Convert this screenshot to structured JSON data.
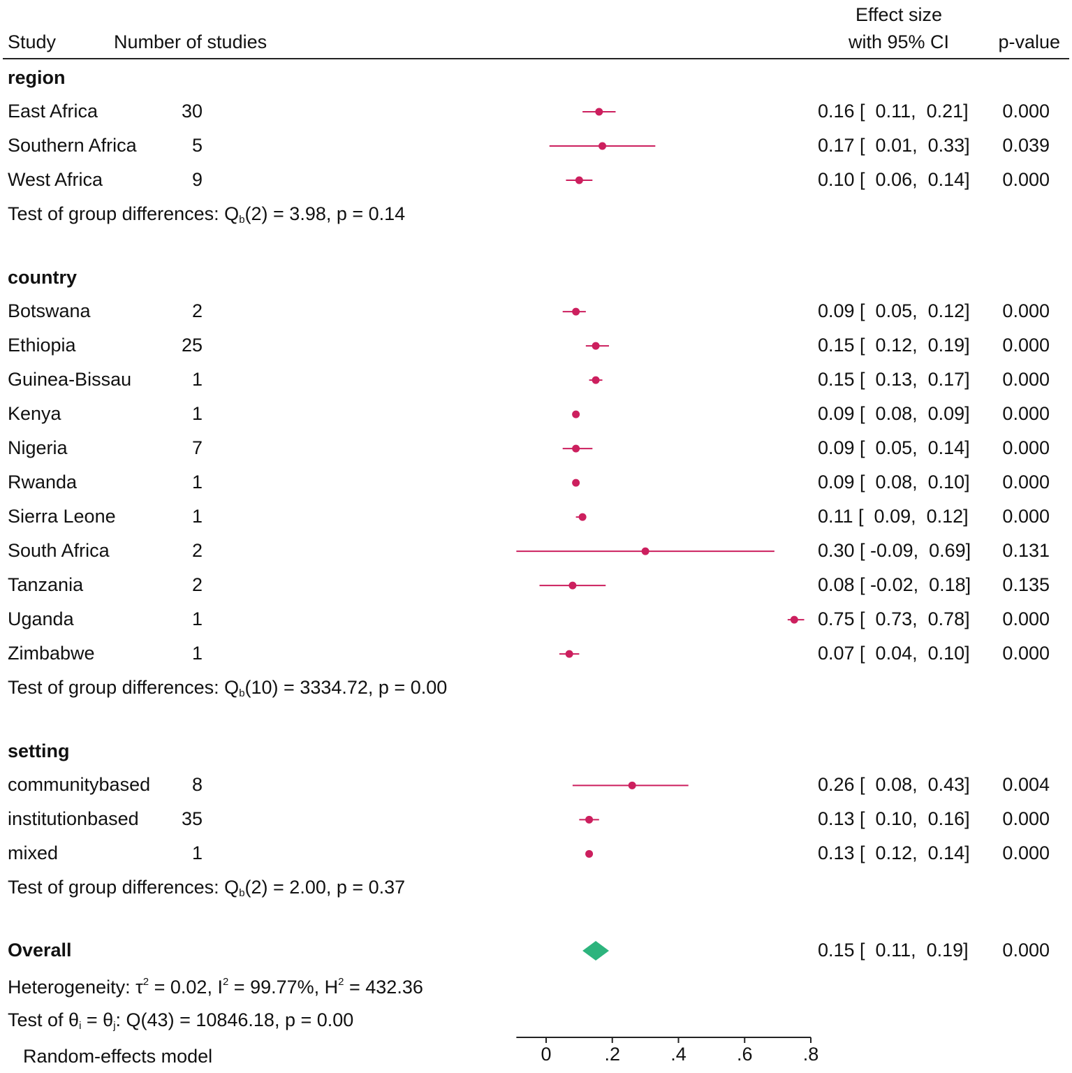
{
  "chart_data": {
    "type": "forest",
    "columns": {
      "study": "Study",
      "n_studies": "Number of studies",
      "effect_line1": "Effect size",
      "effect_line2": "with 95% CI",
      "pvalue": "p-value"
    },
    "groups": [
      {
        "name": "region",
        "rows": [
          {
            "label": "East Africa",
            "n": "30",
            "es": 0.16,
            "lo": 0.11,
            "hi": 0.21,
            "ci_text": "0.16 [  0.11,  0.21]",
            "p": "0.000"
          },
          {
            "label": "Southern Africa",
            "n": "5",
            "es": 0.17,
            "lo": 0.01,
            "hi": 0.33,
            "ci_text": "0.17 [  0.01,  0.33]",
            "p": "0.039"
          },
          {
            "label": "West Africa",
            "n": "9",
            "es": 0.1,
            "lo": 0.06,
            "hi": 0.14,
            "ci_text": "0.10 [  0.06,  0.14]",
            "p": "0.000"
          }
        ],
        "test_prefix": "Test of group differences: Q",
        "test_sub": "b",
        "test_suffix": "(2) = 3.98, p = 0.14"
      },
      {
        "name": "country",
        "rows": [
          {
            "label": "Botswana",
            "n": "2",
            "es": 0.09,
            "lo": 0.05,
            "hi": 0.12,
            "ci_text": "0.09 [  0.05,  0.12]",
            "p": "0.000"
          },
          {
            "label": "Ethiopia",
            "n": "25",
            "es": 0.15,
            "lo": 0.12,
            "hi": 0.19,
            "ci_text": "0.15 [  0.12,  0.19]",
            "p": "0.000"
          },
          {
            "label": "Guinea-Bissau",
            "n": "1",
            "es": 0.15,
            "lo": 0.13,
            "hi": 0.17,
            "ci_text": "0.15 [  0.13,  0.17]",
            "p": "0.000"
          },
          {
            "label": "Kenya",
            "n": "1",
            "es": 0.09,
            "lo": 0.08,
            "hi": 0.09,
            "ci_text": "0.09 [  0.08,  0.09]",
            "p": "0.000"
          },
          {
            "label": "Nigeria",
            "n": "7",
            "es": 0.09,
            "lo": 0.05,
            "hi": 0.14,
            "ci_text": "0.09 [  0.05,  0.14]",
            "p": "0.000"
          },
          {
            "label": "Rwanda",
            "n": "1",
            "es": 0.09,
            "lo": 0.08,
            "hi": 0.1,
            "ci_text": "0.09 [  0.08,  0.10]",
            "p": "0.000"
          },
          {
            "label": "Sierra Leone",
            "n": "1",
            "es": 0.11,
            "lo": 0.09,
            "hi": 0.12,
            "ci_text": "0.11 [  0.09,  0.12]",
            "p": "0.000"
          },
          {
            "label": "South Africa",
            "n": "2",
            "es": 0.3,
            "lo": -0.09,
            "hi": 0.69,
            "ci_text": "0.30 [ -0.09,  0.69]",
            "p": "0.131"
          },
          {
            "label": "Tanzania",
            "n": "2",
            "es": 0.08,
            "lo": -0.02,
            "hi": 0.18,
            "ci_text": "0.08 [ -0.02,  0.18]",
            "p": "0.135"
          },
          {
            "label": "Uganda",
            "n": "1",
            "es": 0.75,
            "lo": 0.73,
            "hi": 0.78,
            "ci_text": "0.75 [  0.73,  0.78]",
            "p": "0.000"
          },
          {
            "label": "Zimbabwe",
            "n": "1",
            "es": 0.07,
            "lo": 0.04,
            "hi": 0.1,
            "ci_text": "0.07 [  0.04,  0.10]",
            "p": "0.000"
          }
        ],
        "test_prefix": "Test of group differences: Q",
        "test_sub": "b",
        "test_suffix": "(10) = 3334.72, p = 0.00"
      },
      {
        "name": "setting",
        "rows": [
          {
            "label": "communitybased",
            "n": "8",
            "es": 0.26,
            "lo": 0.08,
            "hi": 0.43,
            "ci_text": "0.26 [  0.08,  0.43]",
            "p": "0.004"
          },
          {
            "label": "institutionbased",
            "n": "35",
            "es": 0.13,
            "lo": 0.1,
            "hi": 0.16,
            "ci_text": "0.13 [  0.10,  0.16]",
            "p": "0.000"
          },
          {
            "label": "mixed",
            "n": "1",
            "es": 0.13,
            "lo": 0.12,
            "hi": 0.14,
            "ci_text": "0.13 [  0.12,  0.14]",
            "p": "0.000"
          }
        ],
        "test_prefix": "Test of group differences: Q",
        "test_sub": "b",
        "test_suffix": "(2) = 2.00, p = 0.37"
      }
    ],
    "overall": {
      "label": "Overall",
      "es": 0.15,
      "lo": 0.11,
      "hi": 0.19,
      "ci_text": "0.15 [  0.11,  0.19]",
      "p": "0.000"
    },
    "heterogeneity": {
      "prefix": "Heterogeneity: τ",
      "tau_sup": "2",
      "part2": " = 0.02, I",
      "i_sup": "2",
      "part3": " = 99.77%, H",
      "h_sup": "2",
      "part4": " = 432.36"
    },
    "homogeneity_test": {
      "prefix": "Test of θ",
      "sub_i": "i",
      "mid": " = θ",
      "sub_j": "j",
      "suffix": ": Q(43) = 10846.18, p = 0.00"
    },
    "model_note": "Random-effects model",
    "xaxis": {
      "range": [
        -0.09,
        0.8
      ],
      "ticks": [
        0,
        0.2,
        0.4,
        0.6,
        0.8
      ],
      "tick_labels": [
        "0",
        ".2",
        ".4",
        ".6",
        ".8"
      ]
    },
    "colors": {
      "study_marker": "#cc1f5e",
      "overall_diamond": "#2db47d",
      "text": "#111111",
      "axis": "#222222"
    }
  }
}
